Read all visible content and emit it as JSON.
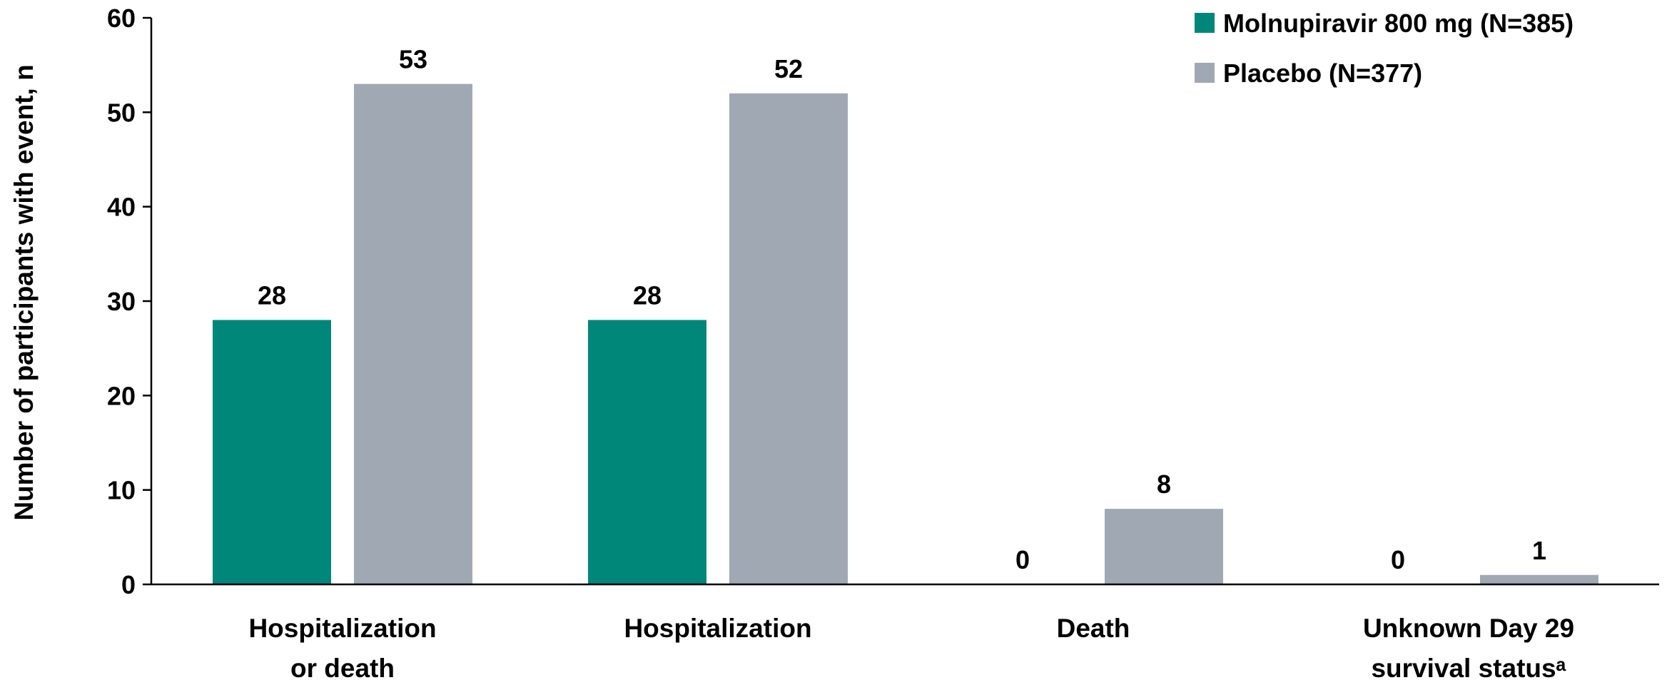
{
  "chart_data": {
    "type": "bar",
    "ylabel": "Number of participants with event, n",
    "ylim": [
      0,
      60
    ],
    "yticks": [
      0,
      10,
      20,
      30,
      40,
      50,
      60
    ],
    "grid": false,
    "legend_position": "top-right",
    "categories": [
      [
        "Hospitalization",
        "or death"
      ],
      [
        "Hospitalization"
      ],
      [
        "Death"
      ],
      [
        "Unknown Day 29",
        "survival statusᵃ"
      ]
    ],
    "series": [
      {
        "name": "Molnupiravir 800 mg (N=385)",
        "color": "#00877a",
        "values": [
          28,
          28,
          0,
          0
        ]
      },
      {
        "name": "Placebo (N=377)",
        "color": "#a0a8b4",
        "values": [
          53,
          52,
          8,
          1
        ]
      }
    ]
  }
}
